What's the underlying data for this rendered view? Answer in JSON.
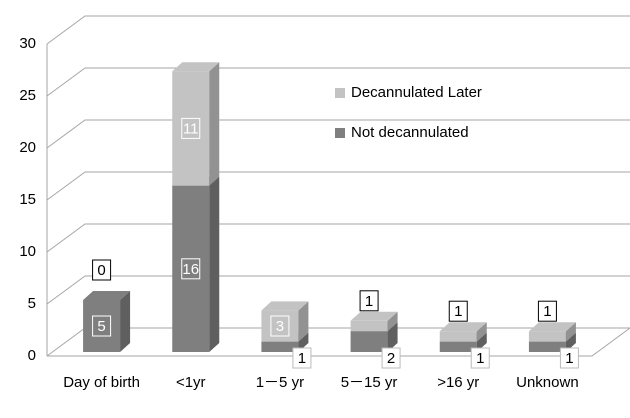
{
  "chart_data": {
    "type": "bar3d_stacked",
    "categories": [
      "Day of birth",
      "<1yr",
      "1－5 yr",
      "5－15 yr",
      ">16 yr",
      "Unknown"
    ],
    "series": [
      {
        "name": "Not decannulated",
        "color": "#7f7f7f",
        "values": [
          5,
          16,
          1,
          2,
          1,
          1
        ]
      },
      {
        "name": "Decannulated Later",
        "color": "#c3c3c3",
        "values": [
          0,
          11,
          3,
          1,
          1,
          1
        ]
      }
    ],
    "ylim": [
      0,
      30
    ],
    "yticks": [
      0,
      5,
      10,
      15,
      20,
      25,
      30
    ],
    "grid": true,
    "legend": "top-center"
  }
}
